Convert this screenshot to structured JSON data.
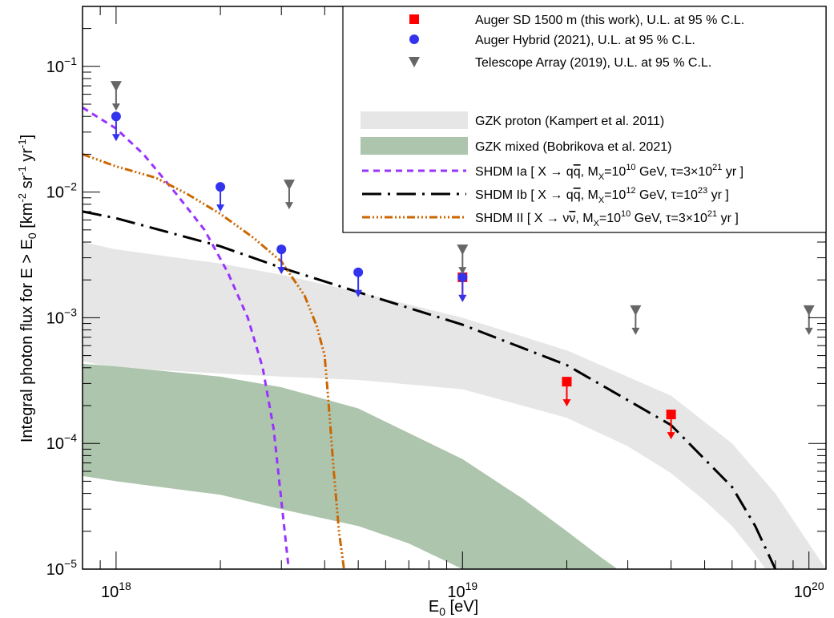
{
  "chart_data": {
    "type": "scatter",
    "xlabel": "E",
    "xlabel_sub": "0",
    "xlabel_unit": " [eV]",
    "ylabel_parts": [
      "Integral photon flux for E > E",
      "0",
      " [km",
      "-2",
      " sr",
      "-1",
      " yr",
      "-1",
      "]"
    ],
    "x_scale": "log",
    "y_scale": "log",
    "xlim": [
      8e+17,
      1.12e+20
    ],
    "ylim": [
      1e-05,
      0.3
    ],
    "x_ticks": [
      {
        "value": 1e+18,
        "base": "10",
        "exp": "18"
      },
      {
        "value": 1e+19,
        "base": "10",
        "exp": "19"
      },
      {
        "value": 1e+20,
        "base": "10",
        "exp": "20"
      }
    ],
    "y_ticks": [
      {
        "value": 1e-05,
        "base": "10",
        "exp": "−5"
      },
      {
        "value": 0.0001,
        "base": "10",
        "exp": "−4"
      },
      {
        "value": 0.001,
        "base": "10",
        "exp": "−3"
      },
      {
        "value": 0.01,
        "base": "10",
        "exp": "−2"
      },
      {
        "value": 0.1,
        "base": "10",
        "exp": "−1"
      }
    ],
    "grid": false,
    "legend_position": "top-right",
    "series": [
      {
        "name": "Auger SD 1500 m (this work), U.L. at 95 % C.L.",
        "kind": "upper-limit",
        "marker": "square",
        "color": "#ff0000",
        "points": [
          {
            "x": 1e+19,
            "y": 0.0021
          },
          {
            "x": 2e+19,
            "y": 0.00031
          },
          {
            "x": 4e+19,
            "y": 0.00017
          }
        ]
      },
      {
        "name": "Auger Hybrid (2021), U.L. at 95 % C.L.",
        "kind": "upper-limit",
        "marker": "circle",
        "color": "#3333ee",
        "points": [
          {
            "x": 1e+18,
            "y": 0.04
          },
          {
            "x": 2e+18,
            "y": 0.011
          },
          {
            "x": 3e+18,
            "y": 0.0035
          },
          {
            "x": 5e+18,
            "y": 0.0023
          },
          {
            "x": 1e+19,
            "y": 0.0021
          }
        ]
      },
      {
        "name": "Telescope Array (2019), U.L. at 95 % C.L.",
        "kind": "upper-limit",
        "marker": "triangle-down",
        "color": "#666666",
        "points": [
          {
            "x": 1e+18,
            "y": 0.07
          },
          {
            "x": 3.16e+18,
            "y": 0.0115
          },
          {
            "x": 1e+19,
            "y": 0.0035
          },
          {
            "x": 3.16e+19,
            "y": 0.00115
          },
          {
            "x": 1e+20,
            "y": 0.00115
          }
        ]
      },
      {
        "name": "GZK proton (Kampert et al. 2011)",
        "kind": "band",
        "color": "#e6e6e6",
        "upper": [
          [
            8e+17,
            0.004
          ],
          [
            1e+18,
            0.0035
          ],
          [
            2e+18,
            0.0027
          ],
          [
            3e+18,
            0.0022
          ],
          [
            5e+18,
            0.0016
          ],
          [
            1e+19,
            0.001
          ],
          [
            2e+19,
            0.00055
          ],
          [
            4e+19,
            0.00024
          ],
          [
            6e+19,
            0.0001
          ],
          [
            8e+19,
            4e-05
          ],
          [
            1.12e+20,
            1e-05
          ]
        ],
        "lower": [
          [
            8e+17,
            0.00045
          ],
          [
            1e+18,
            0.0004
          ],
          [
            2e+18,
            0.00036
          ],
          [
            3e+18,
            0.00034
          ],
          [
            5e+18,
            0.00032
          ],
          [
            1e+19,
            0.00027
          ],
          [
            2e+19,
            0.00016
          ],
          [
            3e+19,
            9.5e-05
          ],
          [
            4e+19,
            5.8e-05
          ],
          [
            5e+19,
            3.5e-05
          ],
          [
            6e+19,
            2.2e-05
          ],
          [
            7e+19,
            1.3e-05
          ],
          [
            7.5e+19,
            1e-05
          ]
        ]
      },
      {
        "name": "GZK mixed (Bobrikova et al. 2021)",
        "kind": "band",
        "color": "#adc4ad",
        "upper": [
          [
            8e+17,
            0.00043
          ],
          [
            1e+18,
            0.00041
          ],
          [
            2e+18,
            0.00034
          ],
          [
            3e+18,
            0.00028
          ],
          [
            5e+18,
            0.00019
          ],
          [
            1e+19,
            7.5e-05
          ],
          [
            1.5e+19,
            3.6e-05
          ],
          [
            2e+19,
            2e-05
          ],
          [
            2.5e+19,
            1.25e-05
          ],
          [
            2.8e+19,
            1e-05
          ]
        ],
        "lower": [
          [
            8e+17,
            5.5e-05
          ],
          [
            1e+18,
            5e-05
          ],
          [
            2e+18,
            3.9e-05
          ],
          [
            3e+18,
            3e-05
          ],
          [
            5e+18,
            2.2e-05
          ],
          [
            7e+18,
            1.6e-05
          ],
          [
            1e+19,
            1e-05
          ]
        ]
      },
      {
        "name_parts": [
          "SHDM Ia [ X → q",
          "q",
          ",  M",
          "X",
          "=10",
          "10",
          " GeV,  τ=3×10",
          "21",
          " yr ]"
        ],
        "kind": "line",
        "dash": "8,6",
        "width": 3,
        "color": "#9933ff",
        "points": [
          [
            8e+17,
            0.047
          ],
          [
            1e+18,
            0.032
          ],
          [
            1.2e+18,
            0.02
          ],
          [
            1.5e+18,
            0.0095
          ],
          [
            1.8e+18,
            0.005
          ],
          [
            2.1e+18,
            0.0023
          ],
          [
            2.4e+18,
            0.001
          ],
          [
            2.65e+18,
            0.0004
          ],
          [
            2.85e+18,
            0.00013
          ],
          [
            3e+18,
            3.5e-05
          ],
          [
            3.15e+18,
            1e-05
          ]
        ]
      },
      {
        "name_parts": [
          "SHDM Ib [ X → q",
          "q",
          ",  M",
          "X",
          "=10",
          "12",
          " GeV,  τ=10",
          "23",
          " yr ]"
        ],
        "kind": "line",
        "dash": "24,8,3,8",
        "width": 3,
        "color": "#000000",
        "points": [
          [
            8e+17,
            0.007
          ],
          [
            1e+18,
            0.0062
          ],
          [
            2e+18,
            0.0037
          ],
          [
            3e+18,
            0.0025
          ],
          [
            5e+18,
            0.0016
          ],
          [
            1e+19,
            0.00088
          ],
          [
            2e+19,
            0.00042
          ],
          [
            4e+19,
            0.00014
          ],
          [
            6e+19,
            4.5e-05
          ],
          [
            7e+19,
            2.2e-05
          ],
          [
            8e+19,
            1e-05
          ]
        ]
      },
      {
        "name_parts": [
          "SHDM II  [ X → ν",
          "ν",
          ", M",
          "X",
          "=10",
          "10",
          " GeV,  τ=3×10",
          "21",
          " yr ]"
        ],
        "kind": "line",
        "dash": "10,3,2,3,2,3,2,3",
        "width": 3,
        "color": "#cc6600",
        "points": [
          [
            8e+17,
            0.02
          ],
          [
            1e+18,
            0.016
          ],
          [
            1.3e+18,
            0.013
          ],
          [
            1.6e+18,
            0.0097
          ],
          [
            2e+18,
            0.0067
          ],
          [
            2.5e+18,
            0.0043
          ],
          [
            3e+18,
            0.0028
          ],
          [
            3.5e+18,
            0.0015
          ],
          [
            3.8e+18,
            0.00085
          ],
          [
            4e+18,
            0.0005
          ],
          [
            4.1e+18,
            0.00022
          ],
          [
            4.25e+18,
            6e-05
          ],
          [
            4.4e+18,
            2e-05
          ],
          [
            4.55e+18,
            1e-05
          ]
        ]
      }
    ]
  }
}
